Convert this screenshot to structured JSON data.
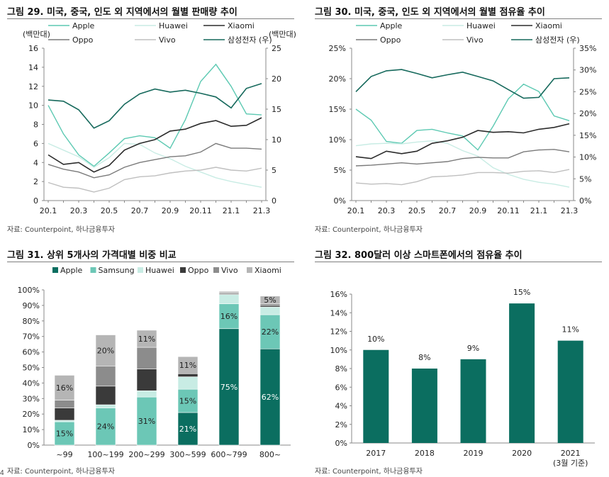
{
  "colors": {
    "apple": "#5cc9b2",
    "huawei": "#c8ece4",
    "xiaomi": "#2b2b2b",
    "oppo": "#7a7a7a",
    "vivo": "#bfbfbf",
    "samsung": "#16695c",
    "bar_samsung": "#6cc7b6",
    "bar_oppo": "#3a3a3a",
    "bar_vivo": "#8c8c8c",
    "bar_xiaomi": "#b5b5b5",
    "bar_main": "#0b6e60"
  },
  "panels": [
    {
      "title": "그림 29. 미국, 중국, 인도 외 지역에서의 월별 판매량 추이",
      "source": "자료: Counterpoint, 하나금융투자"
    },
    {
      "title": "그림 30. 미국, 중국, 인도 외 지역에서의 월별 점유율 추이",
      "source": "자료: Counterpoint, 하나금융투자"
    },
    {
      "title": "그림 31. 상위 5개사의 가격대별 비중 비교",
      "source": "자료: Counterpoint, 하나금융투자"
    },
    {
      "title": "그림 32. 800달러 이상 스마트폰에서의 점유율 추이",
      "source": "자료: Counterpoint, 하나금융투자"
    }
  ],
  "footer_text": "4",
  "chart_data": [
    {
      "type": "line",
      "x": [
        "20.1",
        "20.2",
        "20.3",
        "20.4",
        "20.5",
        "20.6",
        "20.7",
        "20.8",
        "20.9",
        "20.10",
        "20.11",
        "20.12",
        "21.1",
        "21.2",
        "21.3"
      ],
      "x_tick_labels": [
        "20.1",
        "20.3",
        "20.5",
        "20.7",
        "20.9",
        "20.11",
        "21.1",
        "21.3"
      ],
      "y_left": {
        "label": "(백만대)",
        "lim": [
          0,
          16
        ],
        "ticks": [
          0,
          2,
          4,
          6,
          8,
          10,
          12,
          14,
          16
        ]
      },
      "y_right": {
        "label": "(백만대)",
        "lim": [
          0,
          25
        ],
        "ticks": [
          0,
          5,
          10,
          15,
          20,
          25
        ]
      },
      "series": [
        {
          "name": "Apple",
          "axis": "left",
          "color_key": "apple",
          "values": [
            10.0,
            7.0,
            4.8,
            3.6,
            5.0,
            6.5,
            6.8,
            6.6,
            5.5,
            8.5,
            12.5,
            14.3,
            12.0,
            9.1,
            9.0
          ]
        },
        {
          "name": "Huawei",
          "axis": "left",
          "color_key": "huawei",
          "values": [
            6.0,
            5.3,
            4.6,
            3.5,
            4.5,
            6.0,
            5.9,
            5.0,
            4.4,
            3.6,
            3.0,
            2.4,
            2.0,
            1.7,
            1.4
          ]
        },
        {
          "name": "Xiaomi",
          "axis": "left",
          "color_key": "xiaomi",
          "values": [
            4.8,
            3.8,
            4.0,
            3.0,
            3.7,
            5.3,
            6.0,
            6.4,
            7.3,
            7.5,
            8.1,
            8.4,
            7.8,
            7.9,
            8.7
          ]
        },
        {
          "name": "Oppo",
          "axis": "left",
          "color_key": "oppo",
          "values": [
            3.8,
            3.3,
            3.0,
            2.4,
            2.7,
            3.5,
            4.0,
            4.3,
            4.6,
            4.7,
            5.1,
            6.0,
            5.5,
            5.5,
            5.4
          ]
        },
        {
          "name": "Vivo",
          "axis": "left",
          "color_key": "vivo",
          "values": [
            1.9,
            1.4,
            1.3,
            0.9,
            1.3,
            2.2,
            2.5,
            2.6,
            2.9,
            3.1,
            3.2,
            3.5,
            3.2,
            3.1,
            3.4
          ]
        },
        {
          "name": "삼성전자 (우)",
          "axis": "right",
          "color_key": "samsung",
          "values": [
            16.5,
            16.3,
            14.9,
            11.9,
            13.1,
            15.8,
            17.5,
            18.3,
            17.8,
            18.1,
            17.6,
            17.0,
            15.2,
            18.4,
            19.2
          ]
        }
      ],
      "legend": "top"
    },
    {
      "type": "line",
      "x": [
        "20.1",
        "20.2",
        "20.3",
        "20.4",
        "20.5",
        "20.6",
        "20.7",
        "20.8",
        "20.9",
        "20.10",
        "20.11",
        "20.12",
        "21.1",
        "21.2",
        "21.3"
      ],
      "x_tick_labels": [
        "20.1",
        "20.3",
        "20.5",
        "20.7",
        "20.9",
        "20.11",
        "21.1",
        "21.3"
      ],
      "y_left": {
        "lim": [
          0,
          25
        ],
        "ticks": [
          "0%",
          "5%",
          "10%",
          "15%",
          "20%",
          "25%"
        ]
      },
      "y_right": {
        "lim": [
          0,
          35
        ],
        "ticks": [
          "0%",
          "5%",
          "10%",
          "15%",
          "20%",
          "25%",
          "30%",
          "35%"
        ]
      },
      "series": [
        {
          "name": "Apple",
          "axis": "left",
          "color_key": "apple",
          "values": [
            15.0,
            13.2,
            9.7,
            9.4,
            11.5,
            11.7,
            11.1,
            10.6,
            8.3,
            12.2,
            16.7,
            19.1,
            17.9,
            13.9,
            13.1
          ]
        },
        {
          "name": "Huawei",
          "axis": "left",
          "color_key": "huawei",
          "values": [
            9.0,
            9.3,
            9.4,
            9.3,
            9.6,
            9.8,
            9.4,
            8.2,
            7.3,
            5.4,
            4.3,
            3.5,
            3.0,
            2.7,
            2.2
          ]
        },
        {
          "name": "Xiaomi",
          "axis": "left",
          "color_key": "xiaomi",
          "values": [
            7.2,
            6.9,
            8.1,
            7.7,
            8.1,
            9.4,
            9.8,
            10.4,
            11.5,
            11.2,
            11.3,
            11.1,
            11.7,
            12.0,
            12.6
          ]
        },
        {
          "name": "Oppo",
          "axis": "left",
          "color_key": "oppo",
          "values": [
            5.7,
            5.8,
            6.0,
            6.2,
            6.0,
            6.2,
            6.4,
            6.9,
            7.1,
            7.0,
            7.0,
            8.0,
            8.3,
            8.4,
            8.0
          ]
        },
        {
          "name": "Vivo",
          "axis": "left",
          "color_key": "vivo",
          "values": [
            2.9,
            2.7,
            2.8,
            2.6,
            3.1,
            3.9,
            4.0,
            4.2,
            4.6,
            4.6,
            4.5,
            4.8,
            4.9,
            4.6,
            5.1
          ]
        },
        {
          "name": "삼성전자 (우)",
          "axis": "right",
          "color_key": "samsung",
          "values": [
            25.0,
            28.5,
            29.8,
            30.1,
            29.2,
            28.2,
            28.9,
            29.5,
            28.5,
            27.5,
            25.5,
            23.5,
            23.7,
            28.0,
            28.2
          ]
        }
      ],
      "legend": "top"
    },
    {
      "type": "bar",
      "stacked": true,
      "categories": [
        "~99",
        "100~199",
        "200~299",
        "300~599",
        "600~799",
        "800~"
      ],
      "ylim": [
        0,
        100
      ],
      "y_ticks": [
        "0%",
        "10%",
        "20%",
        "30%",
        "40%",
        "50%",
        "60%",
        "70%",
        "80%",
        "90%",
        "100%"
      ],
      "series": [
        {
          "name": "Apple",
          "color_key": "bar_main",
          "values": [
            0,
            0,
            0,
            21,
            75,
            62
          ],
          "labels": [
            "",
            "",
            "",
            "21%",
            "75%",
            "62%"
          ]
        },
        {
          "name": "Samsung",
          "color_key": "bar_samsung",
          "values": [
            15,
            24,
            31,
            15,
            16,
            22
          ],
          "labels": [
            "15%",
            "24%",
            "31%",
            "15%",
            "16%",
            "22%"
          ]
        },
        {
          "name": "Huawei",
          "color_key": "huawei",
          "values": [
            1,
            2,
            4,
            8,
            6,
            5
          ],
          "labels": [
            "",
            "",
            "",
            "",
            "",
            ""
          ]
        },
        {
          "name": "Oppo",
          "color_key": "bar_oppo",
          "values": [
            8,
            12,
            14,
            2,
            0,
            1
          ],
          "labels": [
            "",
            "",
            "",
            "",
            "",
            ""
          ]
        },
        {
          "name": "Vivo",
          "color_key": "bar_vivo",
          "values": [
            5,
            13,
            14,
            0,
            1,
            1
          ],
          "labels": [
            "",
            "",
            "",
            "",
            "",
            ""
          ]
        },
        {
          "name": "Xiaomi",
          "color_key": "bar_xiaomi",
          "values": [
            16,
            20,
            11,
            11,
            1,
            5
          ],
          "labels": [
            "16%",
            "20%",
            "11%",
            "11%",
            "",
            "5%"
          ]
        }
      ],
      "legend": "top"
    },
    {
      "type": "bar",
      "categories": [
        "2017",
        "2018",
        "2019",
        "2020",
        "2021"
      ],
      "category_sublabels": [
        "",
        "",
        "",
        "",
        "(3월 기준)"
      ],
      "values": [
        10,
        8,
        9,
        15,
        11
      ],
      "value_labels": [
        "10%",
        "8%",
        "9%",
        "15%",
        "11%"
      ],
      "ylim": [
        0,
        16
      ],
      "y_ticks": [
        "0%",
        "2%",
        "4%",
        "6%",
        "8%",
        "10%",
        "12%",
        "14%",
        "16%"
      ]
    }
  ]
}
